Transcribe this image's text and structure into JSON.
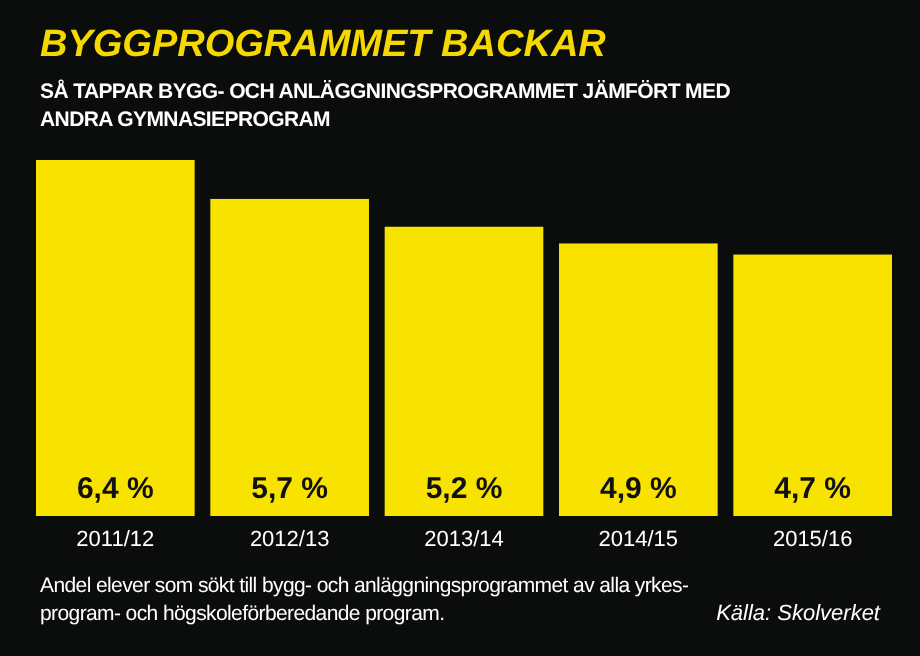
{
  "chart_data": {
    "type": "bar",
    "title": "BYGGPROGRAMMET BACKAR",
    "subtitle": "SÅ TAPPAR BYGG- OCH ANLÄGGNINGSPROGRAMMET JÄMFÖRT MED\nANDRA GYMNASIEPROGRAM",
    "categories": [
      "2011/12",
      "2012/13",
      "2013/14",
      "2014/15",
      "2015/16"
    ],
    "values": [
      6.4,
      5.7,
      5.2,
      4.9,
      4.7
    ],
    "value_labels": [
      "6,4 %",
      "5,7 %",
      "5,2 %",
      "4,9 %",
      "4,7 %"
    ],
    "color": "#f7e200",
    "annotations": [
      "Andel elever som sökt till bygg- och anläggningsprogrammet av alla yrkes-\nprogram- och högskoleförberedande program.",
      "Källa: Skolverket"
    ]
  }
}
